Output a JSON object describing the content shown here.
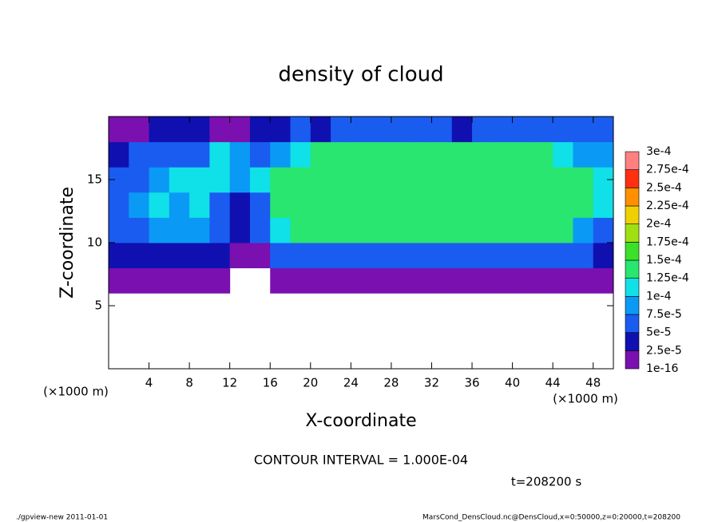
{
  "chart_data": {
    "type": "heatmap",
    "title": "density of cloud",
    "x_label": "X-coordinate",
    "y_label": "Z-coordinate",
    "y_unit": "(×1000 m)",
    "x_unit": "(×1000 m)",
    "contour_note": "CONTOUR INTERVAL = 1.000E-04",
    "time_label": "t=208200 s",
    "footer_left": "./gpview-new  2011-01-01",
    "footer_right": "MarsCond_DensCloud.nc@DensCloud,x=0:50000,z=0:20000,t=208200",
    "xlim": [
      0,
      50
    ],
    "ylim": [
      0,
      20
    ],
    "xticks": [
      4,
      8,
      12,
      16,
      20,
      24,
      28,
      32,
      36,
      40,
      44,
      48
    ],
    "yticks": [
      5,
      10,
      15
    ],
    "x": [
      1,
      3,
      5,
      7,
      9,
      11,
      13,
      15,
      17,
      19,
      21,
      23,
      25,
      27,
      29,
      31,
      33,
      35,
      37,
      39,
      41,
      43,
      45,
      47,
      49
    ],
    "z": [
      1,
      3,
      5,
      7,
      9,
      11,
      13,
      15,
      17,
      19
    ],
    "values": [
      [
        null,
        null,
        null,
        null,
        null,
        null,
        null,
        null,
        null,
        null,
        null,
        null,
        null,
        null,
        null,
        null,
        null,
        null,
        null,
        null,
        null,
        null,
        null,
        null,
        null
      ],
      [
        null,
        null,
        null,
        null,
        null,
        null,
        null,
        null,
        null,
        null,
        null,
        null,
        null,
        null,
        null,
        null,
        null,
        null,
        null,
        null,
        null,
        null,
        null,
        null,
        null
      ],
      [
        null,
        null,
        null,
        null,
        null,
        null,
        null,
        null,
        null,
        null,
        null,
        null,
        null,
        null,
        null,
        null,
        null,
        null,
        null,
        null,
        null,
        null,
        null,
        null,
        null
      ],
      [
        1e-05,
        1e-05,
        1e-05,
        1e-05,
        1e-05,
        1e-05,
        null,
        null,
        1e-05,
        1e-05,
        1e-05,
        1e-05,
        1e-05,
        1e-05,
        1e-05,
        1e-05,
        1e-05,
        1e-05,
        1e-05,
        1e-05,
        1e-05,
        1e-05,
        1e-05,
        1e-05,
        1e-05
      ],
      [
        3e-05,
        4e-05,
        3e-05,
        3e-05,
        4e-05,
        3e-05,
        2e-05,
        2e-05,
        6e-05,
        6e-05,
        6e-05,
        6e-05,
        6e-05,
        6e-05,
        6e-05,
        6e-05,
        6e-05,
        6e-05,
        6e-05,
        6e-05,
        6e-05,
        6e-05,
        6e-05,
        5e-05,
        3e-05
      ],
      [
        6e-05,
        7e-05,
        9e-05,
        8e-05,
        9e-05,
        7e-05,
        4e-05,
        6e-05,
        0.00012,
        0.00014,
        0.00014,
        0.00014,
        0.00014,
        0.00014,
        0.00014,
        0.00014,
        0.00014,
        0.00014,
        0.00014,
        0.00014,
        0.00014,
        0.00014,
        0.00013,
        8e-05,
        5e-05
      ],
      [
        5e-05,
        8e-05,
        0.00011,
        9e-05,
        0.00011,
        6e-05,
        3e-05,
        7e-05,
        0.000135,
        0.000145,
        0.000145,
        0.000145,
        0.000145,
        0.000145,
        0.000145,
        0.000145,
        0.000145,
        0.000145,
        0.000145,
        0.000145,
        0.000145,
        0.000145,
        0.000145,
        0.00013,
        0.0001
      ],
      [
        5e-05,
        7e-05,
        8e-05,
        0.0001,
        0.00012,
        0.0001,
        9e-05,
        0.0001,
        0.00013,
        0.000145,
        0.000145,
        0.000145,
        0.000145,
        0.000145,
        0.000145,
        0.000145,
        0.000145,
        0.000145,
        0.000145,
        0.000145,
        0.000145,
        0.000145,
        0.000145,
        0.000135,
        0.0001
      ],
      [
        4e-05,
        5e-05,
        6e-05,
        7e-05,
        6e-05,
        0.00011,
        8e-05,
        6e-05,
        9e-05,
        0.00012,
        0.000135,
        0.000135,
        0.000135,
        0.000135,
        0.000135,
        0.000135,
        0.000135,
        0.000135,
        0.000135,
        0.000135,
        0.000135,
        0.000125,
        0.0001,
        9e-05,
        8e-05
      ],
      [
        1e-05,
        2e-05,
        3e-05,
        3e-05,
        3e-05,
        2e-05,
        2e-05,
        3e-05,
        3e-05,
        5e-05,
        4e-05,
        5e-05,
        5e-05,
        5e-05,
        5e-05,
        5e-05,
        5e-05,
        4e-05,
        6e-05,
        6e-05,
        6e-05,
        6e-05,
        6e-05,
        6e-05,
        6e-05
      ]
    ],
    "levels": [
      {
        "value": 1e-16,
        "label": "1e-16"
      },
      {
        "value": 2.5e-05,
        "label": "2.5e-5"
      },
      {
        "value": 5e-05,
        "label": "5e-5"
      },
      {
        "value": 7.5e-05,
        "label": "7.5e-5"
      },
      {
        "value": 0.0001,
        "label": "1e-4"
      },
      {
        "value": 0.000125,
        "label": "1.25e-4"
      },
      {
        "value": 0.00015,
        "label": "1.5e-4"
      },
      {
        "value": 0.000175,
        "label": "1.75e-4"
      },
      {
        "value": 0.0002,
        "label": "2e-4"
      },
      {
        "value": 0.000225,
        "label": "2.25e-4"
      },
      {
        "value": 0.00025,
        "label": "2.5e-4"
      },
      {
        "value": 0.000275,
        "label": "2.75e-4"
      },
      {
        "value": 0.0003,
        "label": "3e-4"
      }
    ],
    "colors": [
      "#7a10b0",
      "#1010b0",
      "#1a5cf0",
      "#0a9af5",
      "#10e0e8",
      "#28e670",
      "#3ce028",
      "#a0e010",
      "#f0d000",
      "#ff9000",
      "#ff3010",
      "#ff8080"
    ]
  }
}
